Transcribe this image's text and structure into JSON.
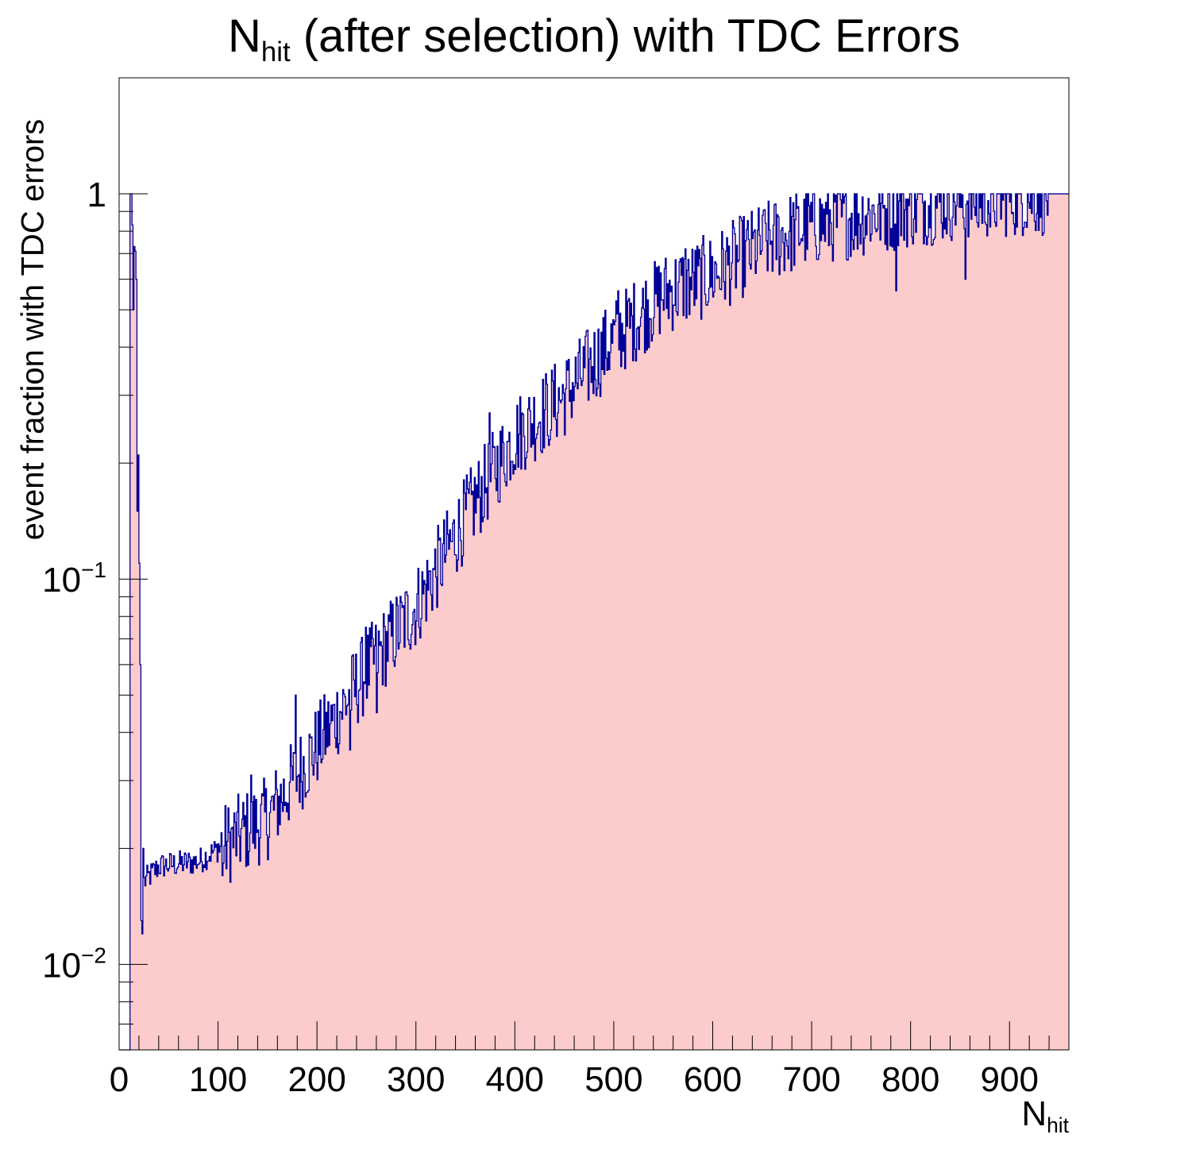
{
  "chart_data": {
    "type": "histogram",
    "title": {
      "main": "N",
      "sub": "hit",
      "rest": " (after selection) with TDC Errors"
    },
    "xlabel": {
      "main": "N",
      "sub": "hit"
    },
    "ylabel": "event fraction with TDC errors",
    "x_range": [
      0,
      960
    ],
    "y_range": [
      0.006,
      2.0
    ],
    "y_scale": "log",
    "bin_width": 1,
    "x_ticks": [
      "0",
      "100",
      "200",
      "300",
      "400",
      "500",
      "600",
      "700",
      "800",
      "900"
    ],
    "y_ticks": [
      {
        "value": 0.01,
        "base": "10",
        "exp": "−2"
      },
      {
        "value": 0.1,
        "base": "10",
        "exp": "−1"
      },
      {
        "value": 1,
        "label": "1"
      }
    ],
    "curve_anchors": [
      [
        21,
        0.016
      ],
      [
        40,
        0.018
      ],
      [
        80,
        0.0185
      ],
      [
        100,
        0.02
      ],
      [
        150,
        0.024
      ],
      [
        200,
        0.037
      ],
      [
        250,
        0.058
      ],
      [
        300,
        0.085
      ],
      [
        350,
        0.145
      ],
      [
        400,
        0.235
      ],
      [
        450,
        0.3
      ],
      [
        500,
        0.42
      ],
      [
        550,
        0.55
      ],
      [
        600,
        0.62
      ],
      [
        650,
        0.74
      ],
      [
        700,
        0.83
      ],
      [
        750,
        0.88
      ],
      [
        800,
        0.93
      ],
      [
        850,
        0.97
      ],
      [
        900,
        0.99
      ],
      [
        946,
        1.0
      ]
    ],
    "low_bins": [
      [
        11,
        1.0
      ],
      [
        12,
        1.0
      ],
      [
        13,
        0.83
      ],
      [
        14,
        0.5
      ],
      [
        15,
        0.73
      ],
      [
        16,
        0.71
      ],
      [
        17,
        0.6
      ],
      [
        18,
        0.15
      ],
      [
        19,
        0.21
      ],
      [
        20,
        0.11
      ],
      [
        21,
        0.06
      ],
      [
        22,
        0.013
      ],
      [
        23,
        0.012
      ],
      [
        24,
        0.02
      ]
    ],
    "high_bins": [
      [
        946,
        1.0
      ],
      [
        947,
        1.0
      ],
      [
        948,
        1.0
      ],
      [
        949,
        1.0
      ],
      [
        950,
        1.0
      ],
      [
        951,
        1.0
      ],
      [
        952,
        1.0
      ],
      [
        953,
        1.0
      ],
      [
        954,
        1.0
      ],
      [
        955,
        1.0
      ],
      [
        956,
        1.0
      ],
      [
        957,
        1.0
      ],
      [
        958,
        1.0
      ],
      [
        959,
        1.0
      ]
    ],
    "dips": [
      [
        104,
        0.017
      ],
      [
        233,
        0.036
      ],
      [
        260,
        0.045
      ],
      [
        435,
        0.23
      ],
      [
        785,
        0.56
      ],
      [
        855,
        0.6
      ],
      [
        868,
        0.82
      ],
      [
        880,
        0.82
      ]
    ],
    "spikes": [
      [
        133,
        0.031
      ],
      [
        178,
        0.05
      ],
      [
        249,
        0.075
      ],
      [
        374,
        0.27
      ],
      [
        504,
        0.56
      ],
      [
        572,
        0.72
      ],
      [
        650,
        0.88
      ],
      [
        777,
        1.0
      ]
    ],
    "fill_color": "#fccbcc",
    "line_color": "#000099",
    "axis_color": "#000000"
  }
}
